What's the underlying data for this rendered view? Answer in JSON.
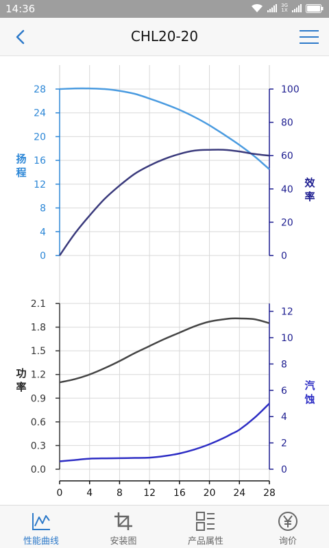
{
  "status_bar": {
    "time": "14:36",
    "network_top": "3G",
    "network_bottom": "1X"
  },
  "header": {
    "title": "CHL20-20",
    "back_icon": "back-arrow-icon",
    "menu_icon": "hamburger-menu-icon"
  },
  "colors": {
    "accent": "#2c79c9",
    "head_curve": "#4a9be0",
    "efficiency_curve": "#3a3a7c",
    "power_curve": "#444444",
    "npsh_curve": "#2d2dc4",
    "left_axis": "#2b86d6",
    "right_axis": "#1c1c8f"
  },
  "chart_data": [
    {
      "type": "line",
      "name": "head-efficiency",
      "x": [
        0,
        2,
        4,
        6,
        8,
        10,
        12,
        14,
        16,
        18,
        20,
        22,
        24,
        26,
        28
      ],
      "xlim": [
        0,
        28
      ],
      "xticks": [
        "0",
        "4",
        "8",
        "12",
        "16",
        "20",
        "24",
        "28"
      ],
      "left_axis": {
        "label": [
          "扬",
          "程"
        ],
        "ylim": [
          0,
          28
        ],
        "ticks": [
          "0",
          "4",
          "8",
          "12",
          "16",
          "20",
          "24",
          "28"
        ]
      },
      "right_axis": {
        "label": [
          "效",
          "率"
        ],
        "ylim": [
          0,
          100
        ],
        "ticks": [
          "0",
          "20",
          "40",
          "60",
          "80",
          "100"
        ]
      },
      "grid": true,
      "series": [
        {
          "axis": "left",
          "values": [
            28.0,
            28.1,
            28.1,
            28.0,
            27.7,
            27.2,
            26.4,
            25.5,
            24.5,
            23.3,
            21.9,
            20.3,
            18.6,
            16.7,
            14.5
          ]
        },
        {
          "axis": "right",
          "values": [
            0,
            13,
            24,
            34,
            42,
            49,
            54,
            58,
            61,
            63,
            63.5,
            63.5,
            62.5,
            61,
            60
          ]
        }
      ]
    },
    {
      "type": "line",
      "name": "power-npsh",
      "x": [
        0,
        2,
        4,
        6,
        8,
        10,
        12,
        14,
        16,
        18,
        20,
        22,
        23,
        24,
        26,
        28
      ],
      "xlim": [
        0,
        28
      ],
      "xticks": [
        "0",
        "4",
        "8",
        "12",
        "16",
        "20",
        "24",
        "28"
      ],
      "left_axis": {
        "label": [
          "功",
          "率"
        ],
        "ylim": [
          0,
          2.1
        ],
        "ticks": [
          "0.0",
          "0.3",
          "0.6",
          "0.9",
          "1.2",
          "1.5",
          "1.8",
          "2.1"
        ]
      },
      "right_axis": {
        "label": [
          "汽",
          "蚀"
        ],
        "ylim": [
          0,
          12.6
        ],
        "ticks": [
          "0",
          "2",
          "4",
          "6",
          "8",
          "10",
          "12"
        ]
      },
      "grid": true,
      "series": [
        {
          "axis": "left",
          "values": [
            1.1,
            1.14,
            1.2,
            1.28,
            1.37,
            1.47,
            1.56,
            1.65,
            1.73,
            1.81,
            1.87,
            1.9,
            1.91,
            1.91,
            1.9,
            1.85
          ]
        },
        {
          "axis": "right",
          "values": [
            0.6,
            0.7,
            0.8,
            0.83,
            0.84,
            0.86,
            0.88,
            1.0,
            1.2,
            1.5,
            1.9,
            2.4,
            2.7,
            3.0,
            3.9,
            5.0
          ]
        }
      ]
    }
  ],
  "bottom_nav": {
    "items": [
      {
        "label": "性能曲线",
        "icon": "performance-curve-icon",
        "active": true
      },
      {
        "label": "安装图",
        "icon": "install-drawing-icon",
        "active": false
      },
      {
        "label": "产品属性",
        "icon": "product-attributes-icon",
        "active": false
      },
      {
        "label": "询价",
        "icon": "yen-price-icon",
        "active": false
      }
    ]
  }
}
